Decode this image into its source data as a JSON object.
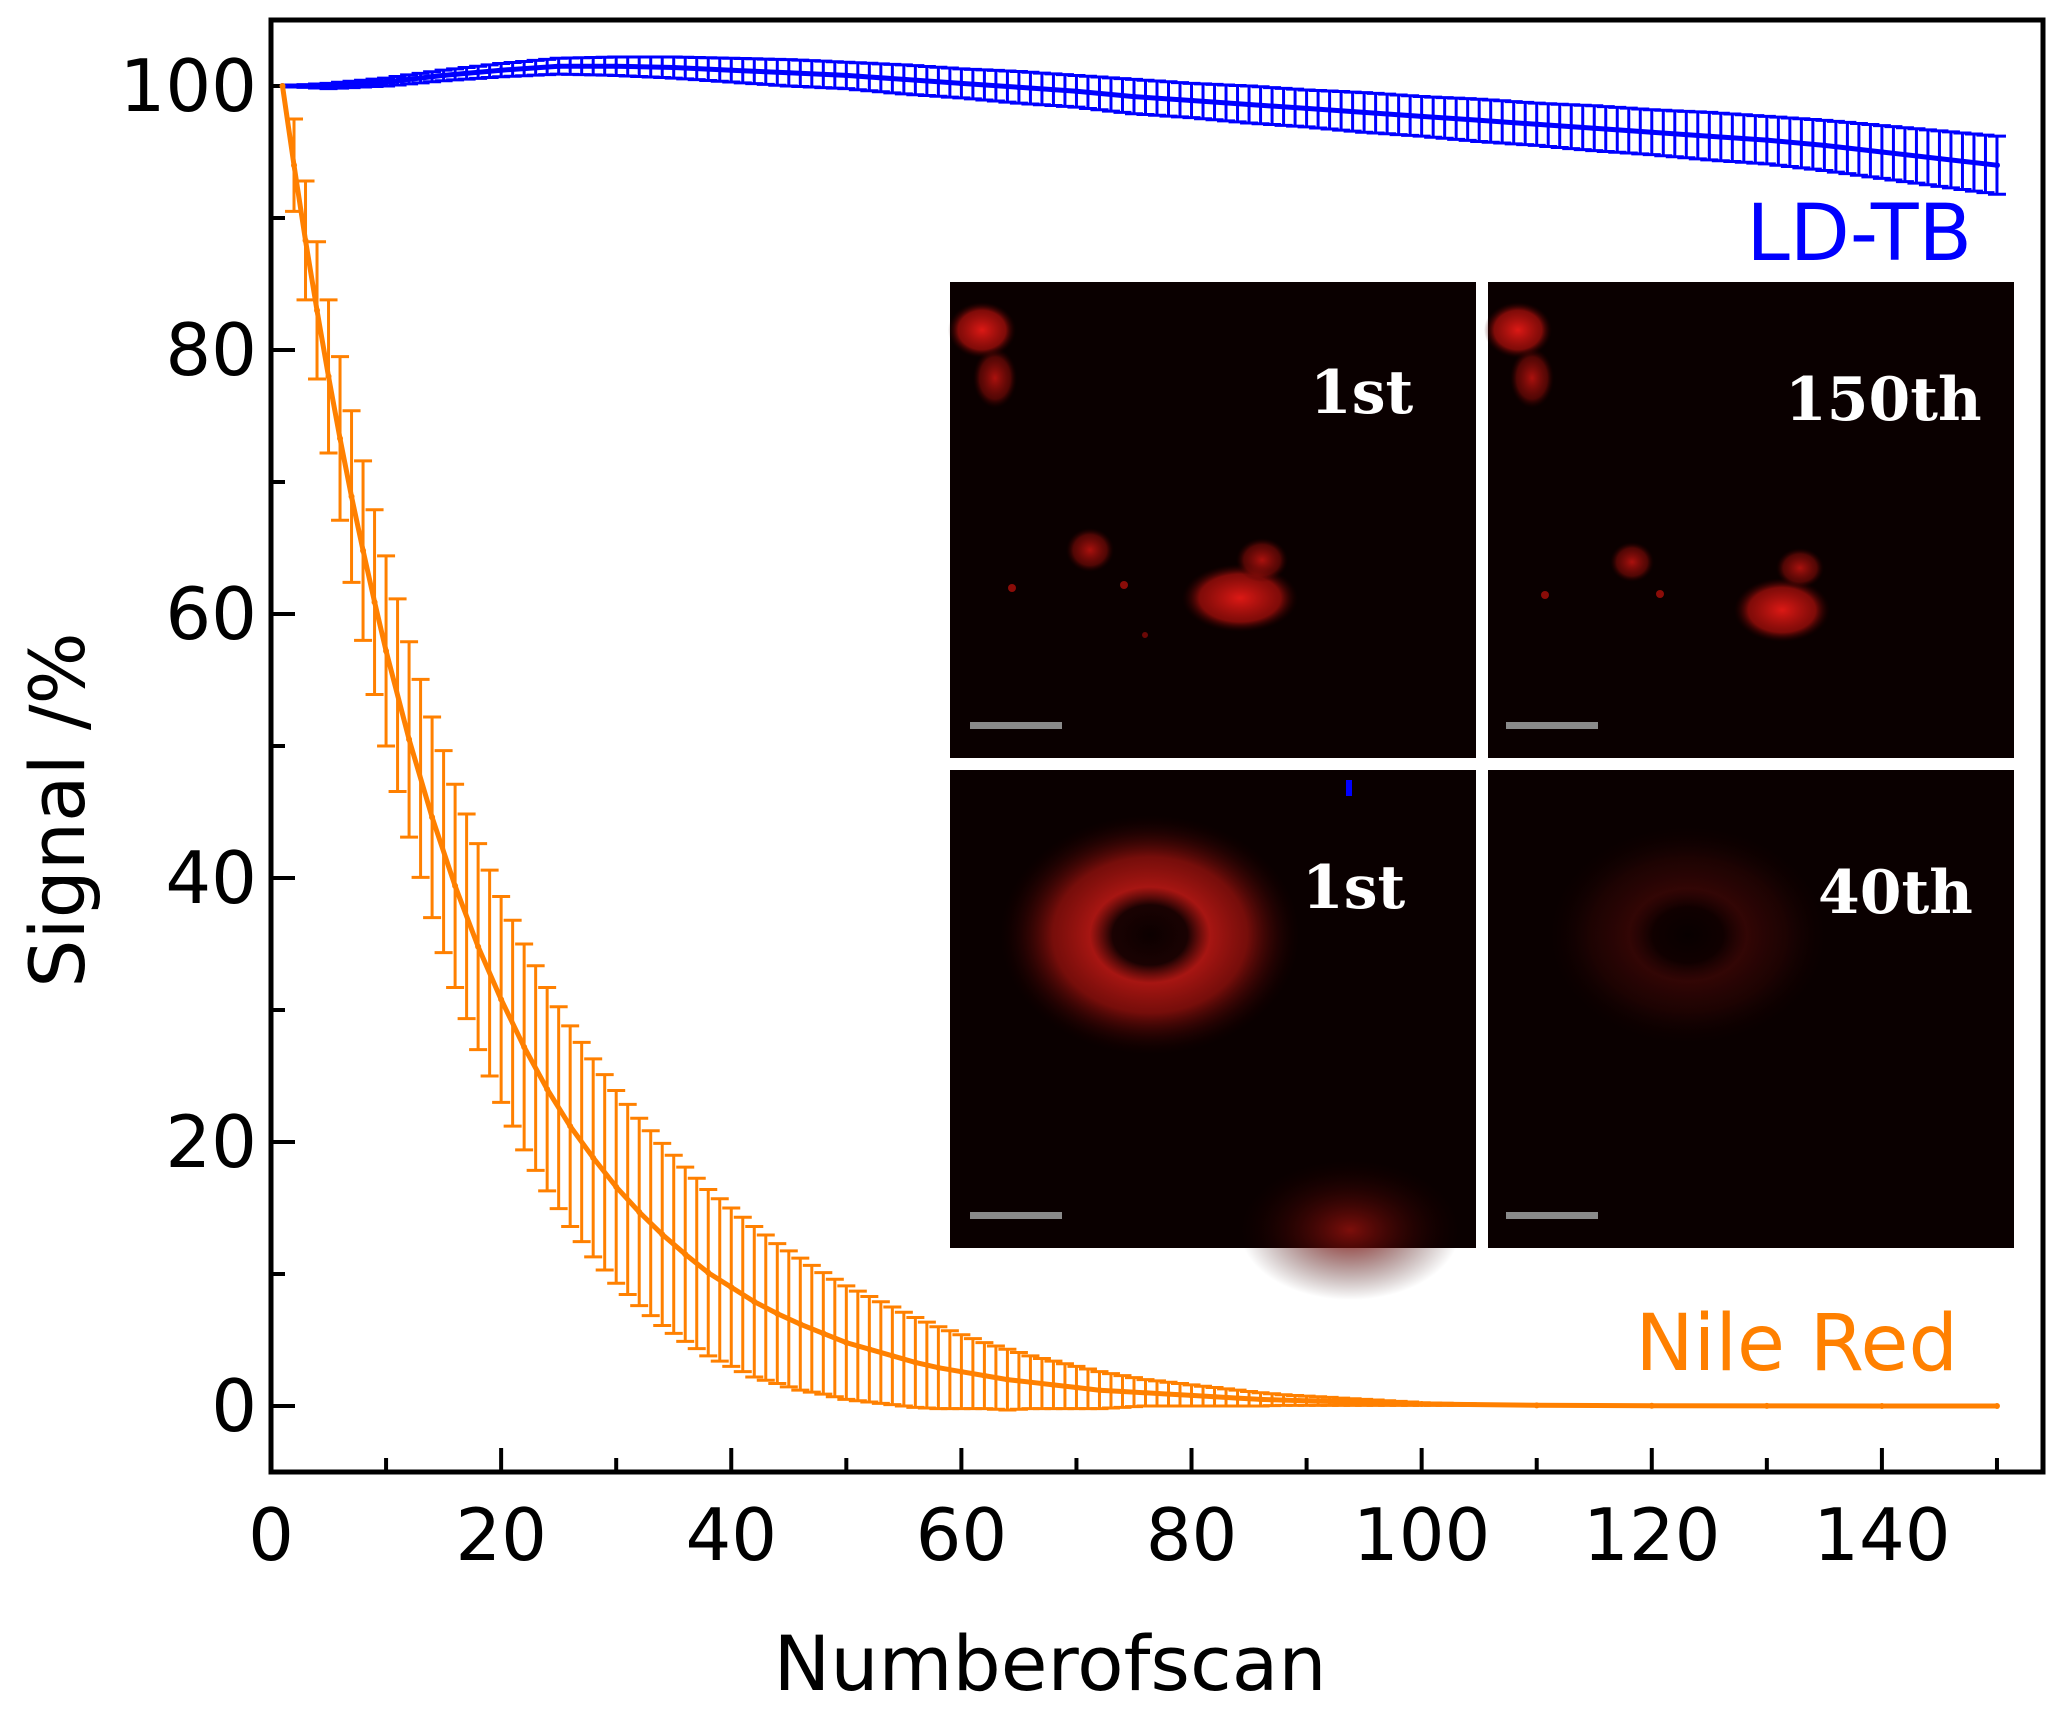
{
  "chart_data": {
    "type": "line",
    "title": "",
    "xlabel": "Numberofscan",
    "ylabel": "Signal /%",
    "xlim": [
      0,
      154
    ],
    "ylim": [
      -5,
      105
    ],
    "xticks": [
      0,
      20,
      40,
      60,
      80,
      100,
      120,
      140
    ],
    "xtick_labels": [
      "0",
      "20",
      "40",
      "60",
      "80",
      "100",
      "120",
      "140"
    ],
    "yticks": [
      0,
      20,
      40,
      60,
      80,
      100
    ],
    "ytick_labels": [
      "0",
      "20",
      "40",
      "60",
      "80",
      "100"
    ],
    "series": [
      {
        "name": "LD-TB",
        "color": "#0000ff",
        "x": [
          1,
          5,
          10,
          15,
          20,
          25,
          30,
          35,
          40,
          45,
          50,
          55,
          60,
          65,
          70,
          75,
          80,
          85,
          90,
          95,
          100,
          105,
          110,
          115,
          120,
          125,
          130,
          135,
          140,
          145,
          150
        ],
        "y": [
          100,
          100,
          100.3,
          100.8,
          101.2,
          101.5,
          101.5,
          101.4,
          101.2,
          101.0,
          100.8,
          100.5,
          100.2,
          99.9,
          99.6,
          99.2,
          98.9,
          98.6,
          98.3,
          98.0,
          97.7,
          97.4,
          97.1,
          96.8,
          96.5,
          96.2,
          95.9,
          95.5,
          95.0,
          94.5,
          94.0
        ],
        "err": [
          0,
          0.2,
          0.3,
          0.4,
          0.5,
          0.6,
          0.7,
          0.8,
          0.9,
          1.0,
          1.0,
          1.1,
          1.1,
          1.2,
          1.2,
          1.3,
          1.3,
          1.4,
          1.4,
          1.5,
          1.5,
          1.6,
          1.6,
          1.7,
          1.7,
          1.8,
          1.8,
          1.9,
          2.0,
          2.1,
          2.2
        ]
      },
      {
        "name": "Nile Red",
        "color": "#ff8000",
        "x": [
          1,
          2,
          3,
          4,
          5,
          6,
          7,
          8,
          9,
          10,
          12,
          14,
          16,
          18,
          20,
          22,
          24,
          26,
          28,
          30,
          32,
          34,
          36,
          38,
          40,
          42,
          44,
          46,
          48,
          50,
          52,
          54,
          56,
          58,
          60,
          62,
          64,
          66,
          68,
          70,
          72,
          74,
          76,
          78,
          80,
          82,
          84,
          86,
          88,
          90,
          92,
          94,
          96,
          98,
          100,
          110,
          120,
          130,
          140,
          150
        ],
        "y": [
          100,
          94.0,
          88.3,
          83.0,
          78.0,
          73.3,
          68.9,
          64.8,
          60.9,
          57.2,
          50.5,
          44.6,
          39.4,
          34.8,
          30.8,
          27.2,
          24.0,
          21.2,
          18.8,
          16.6,
          14.7,
          13.0,
          11.5,
          10.1,
          9.0,
          7.9,
          7.0,
          6.2,
          5.5,
          4.8,
          4.3,
          3.8,
          3.3,
          2.9,
          2.6,
          2.3,
          2.0,
          1.8,
          1.6,
          1.4,
          1.2,
          1.1,
          1.0,
          0.9,
          0.8,
          0.7,
          0.6,
          0.5,
          0.45,
          0.4,
          0.35,
          0.3,
          0.25,
          0.2,
          0.15,
          0.05,
          0.02,
          0.01,
          0.0,
          0.0
        ],
        "err": [
          0,
          3.5,
          4.5,
          5.2,
          5.8,
          6.2,
          6.5,
          6.8,
          7.0,
          7.2,
          7.4,
          7.6,
          7.7,
          7.8,
          7.8,
          7.8,
          7.7,
          7.6,
          7.5,
          7.3,
          7.1,
          6.9,
          6.6,
          6.3,
          6.0,
          5.7,
          5.3,
          5.0,
          4.6,
          4.3,
          4.0,
          3.7,
          3.4,
          3.1,
          2.8,
          2.5,
          2.3,
          2.0,
          1.8,
          1.6,
          1.4,
          1.2,
          1.0,
          0.9,
          0.8,
          0.7,
          0.6,
          0.5,
          0.4,
          0.35,
          0.3,
          0.25,
          0.2,
          0.15,
          0.1,
          0,
          0,
          0,
          0,
          0
        ]
      }
    ],
    "inset": {
      "panels": [
        {
          "label": "1st",
          "row": "LD-TB"
        },
        {
          "label": "150th",
          "row": "LD-TB"
        },
        {
          "label": "1st",
          "row": "Nile Red"
        },
        {
          "label": "40th",
          "row": "Nile Red"
        }
      ]
    }
  }
}
